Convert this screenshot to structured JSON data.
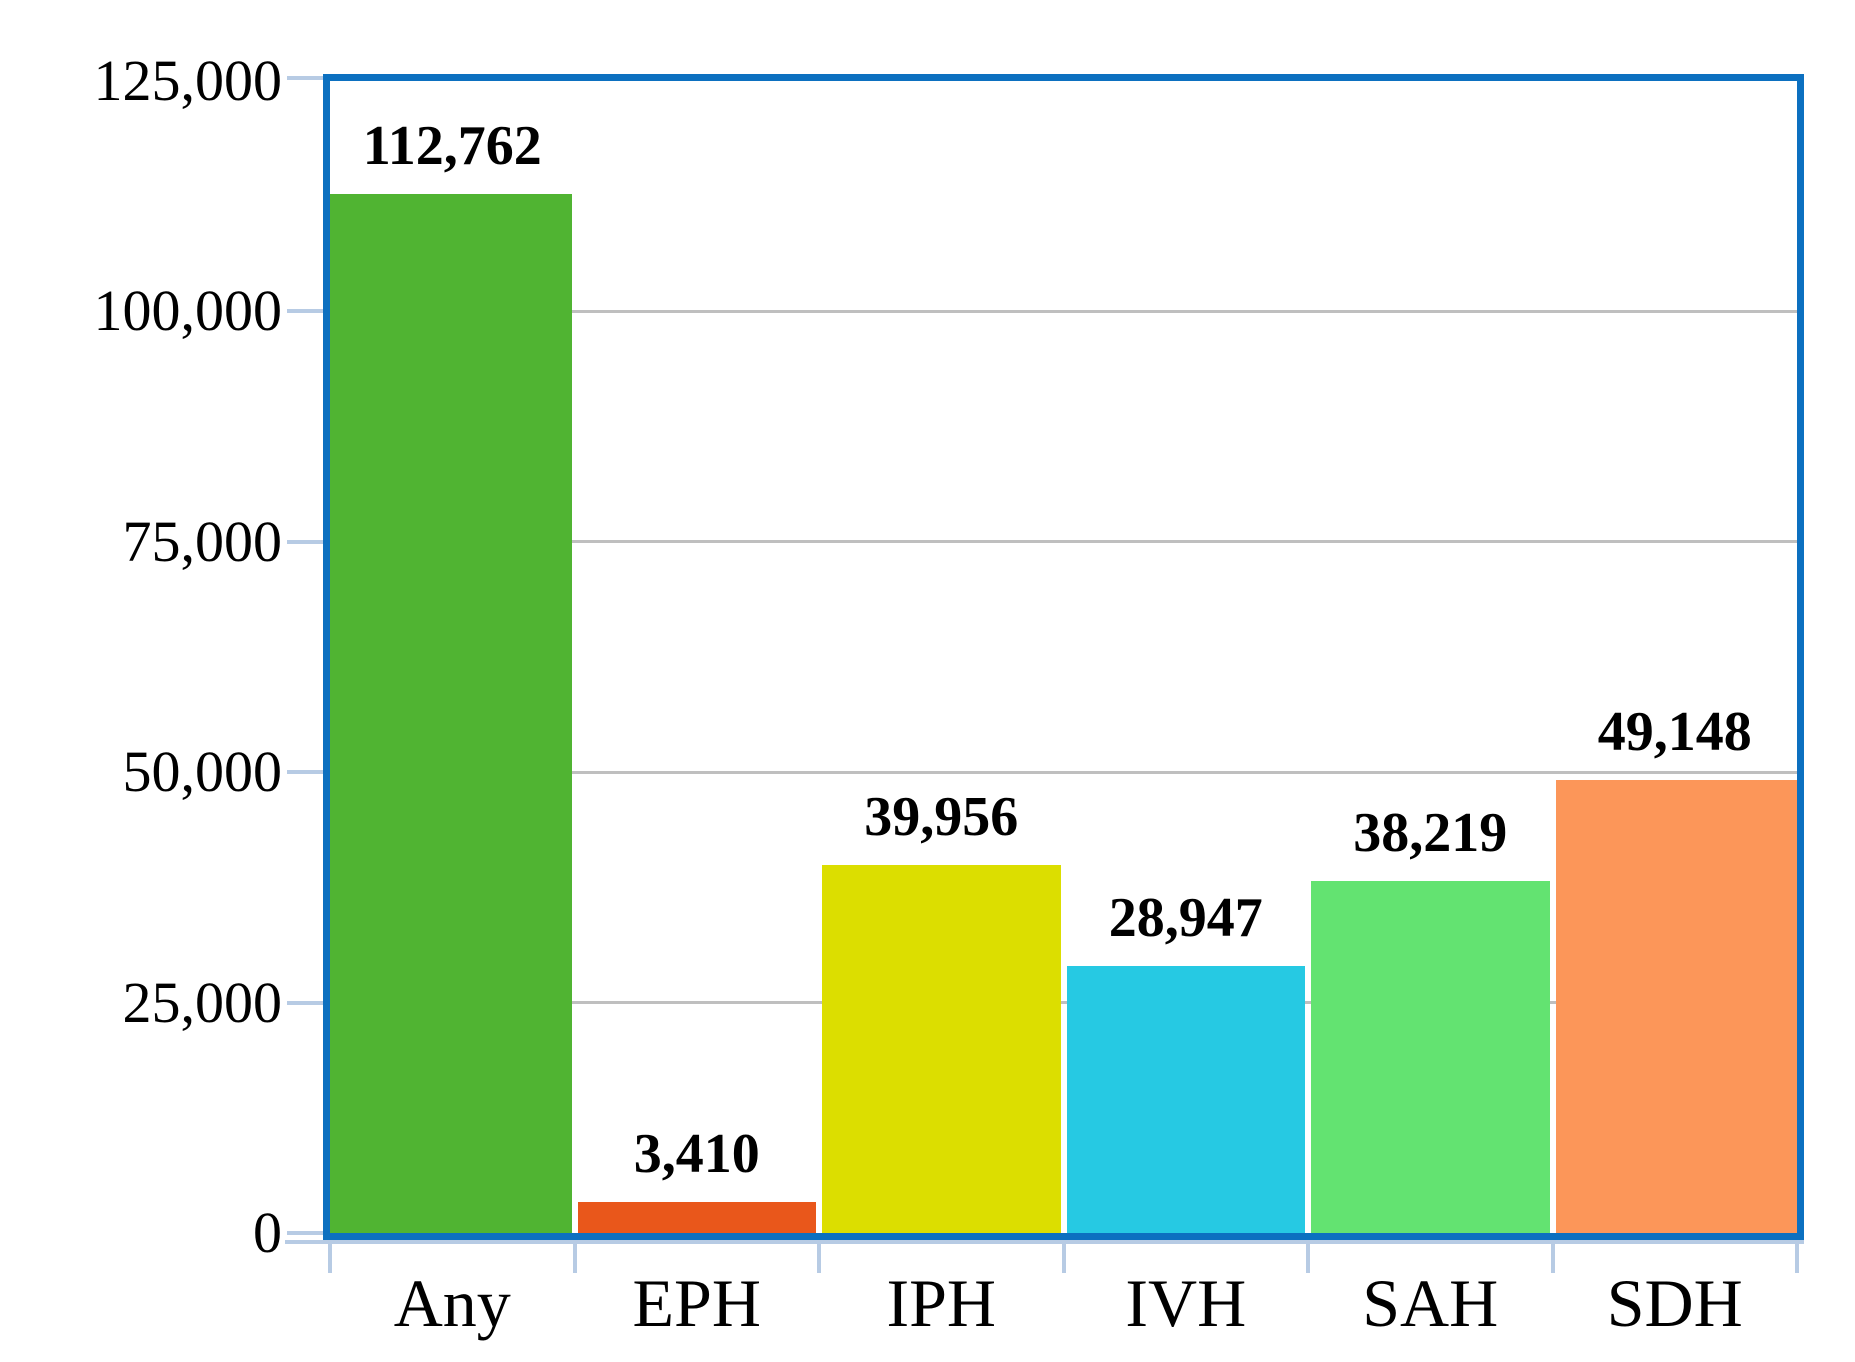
{
  "chart_data": {
    "type": "bar",
    "categories": [
      "Any",
      "EPH",
      "IPH",
      "IVH",
      "SAH",
      "SDH"
    ],
    "values": [
      112762,
      3410,
      39956,
      28947,
      38219,
      49148
    ],
    "value_labels": [
      "112,762",
      "3,410",
      "39,956",
      "28,947",
      "38,219",
      "49,148"
    ],
    "bar_colors": [
      "#50B432",
      "#E9571B",
      "#DCDE00",
      "#26C9E3",
      "#63E371",
      "#FC9659"
    ],
    "title": "",
    "xlabel": "",
    "ylabel": "",
    "ylim": [
      0,
      125000
    ],
    "ytick_interval": 25000,
    "ytick_values": [
      0,
      25000,
      50000,
      75000,
      100000,
      125000
    ],
    "ytick_labels": [
      "0",
      "25,000",
      "50,000",
      "75,000",
      "100,000",
      "125,000"
    ],
    "grid": true,
    "legend": false
  },
  "style": {
    "frame_color": "#0C70C0",
    "gridline_color": "#BFBFBF",
    "tick_color": "#B7CBE4",
    "text_color": "#000000",
    "background_color": "#FFFFFF"
  }
}
